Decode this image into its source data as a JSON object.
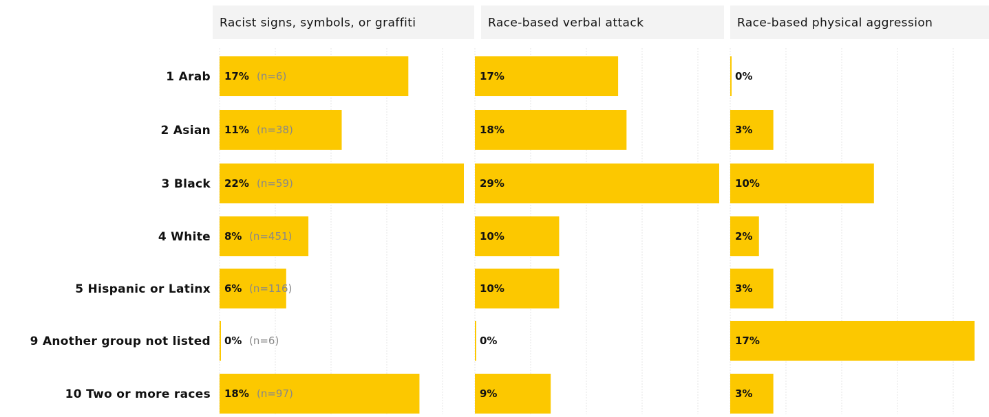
{
  "chart_data": {
    "type": "bar",
    "orientation": "horizontal",
    "bar_color": "#fcc800",
    "categories": [
      "1 Arab",
      "2 Asian",
      "3 Black",
      "4 White",
      "5 Hispanic or Latinx",
      "9 Another group not listed",
      "10 Two or more races"
    ],
    "panels": [
      {
        "title": "Racist signs, symbols, or graffiti",
        "values": [
          17,
          11,
          22,
          8,
          6,
          0,
          18
        ],
        "value_labels": [
          "17%",
          "11%",
          "22%",
          "8%",
          "6%",
          "0%",
          "18%"
        ],
        "n_labels": [
          "(n=6)",
          "(n=38)",
          "(n=59)",
          "(n=451)",
          "(n=116)",
          "(n=6)",
          "(n=97)"
        ],
        "xlim": [
          0,
          22
        ]
      },
      {
        "title": "Race-based verbal attack",
        "values": [
          17,
          18,
          29,
          10,
          10,
          0,
          9
        ],
        "value_labels": [
          "17%",
          "18%",
          "29%",
          "10%",
          "10%",
          "0%",
          "9%"
        ],
        "xlim": [
          0,
          29
        ]
      },
      {
        "title": "Race-based physical aggression",
        "values": [
          0,
          3,
          10,
          2,
          3,
          17,
          3
        ],
        "value_labels": [
          "0%",
          "3%",
          "10%",
          "2%",
          "3%",
          "17%",
          "3%"
        ],
        "xlim": [
          0,
          17
        ]
      }
    ],
    "grid": true
  }
}
